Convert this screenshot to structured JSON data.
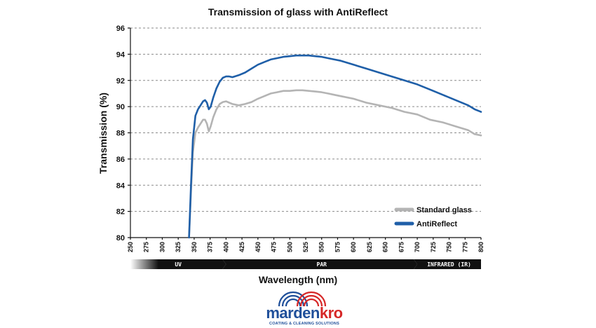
{
  "chart_data": {
    "type": "line",
    "title": "Transmission of glass with AntiReflect",
    "xlabel": "Wavelength (nm)",
    "ylabel": "Transmission (%)",
    "xlim": [
      250,
      800
    ],
    "ylim": [
      80,
      96
    ],
    "xticks": [
      250,
      275,
      300,
      325,
      350,
      375,
      400,
      425,
      450,
      475,
      500,
      525,
      550,
      575,
      600,
      625,
      650,
      675,
      700,
      725,
      750,
      775,
      800
    ],
    "yticks": [
      80,
      82,
      84,
      86,
      88,
      90,
      92,
      94,
      96
    ],
    "grid": "horizontal-dashed",
    "legend": "bottom-right",
    "series": [
      {
        "name": "Standard glass",
        "color": "#b4b4b4",
        "x": [
          342,
          345,
          348,
          352,
          356,
          360,
          364,
          367,
          370,
          373,
          376,
          380,
          385,
          390,
          395,
          400,
          405,
          410,
          420,
          430,
          440,
          450,
          460,
          470,
          480,
          490,
          500,
          510,
          520,
          530,
          540,
          550,
          560,
          570,
          580,
          600,
          620,
          640,
          660,
          680,
          700,
          720,
          740,
          760,
          780,
          790,
          800
        ],
        "y": [
          80,
          83.5,
          86.5,
          88.0,
          88.4,
          88.7,
          89.0,
          89.0,
          88.7,
          88.1,
          88.5,
          89.2,
          89.8,
          90.2,
          90.35,
          90.4,
          90.3,
          90.2,
          90.1,
          90.2,
          90.35,
          90.6,
          90.8,
          91.0,
          91.1,
          91.2,
          91.2,
          91.25,
          91.25,
          91.2,
          91.15,
          91.1,
          91.0,
          90.9,
          90.8,
          90.6,
          90.3,
          90.1,
          89.9,
          89.6,
          89.4,
          89.0,
          88.8,
          88.5,
          88.2,
          87.9,
          87.8
        ]
      },
      {
        "name": "AntiReflect",
        "color": "#1f5fa8",
        "x": [
          342,
          345,
          348,
          352,
          356,
          360,
          364,
          367,
          370,
          373,
          376,
          380,
          385,
          390,
          395,
          400,
          405,
          410,
          420,
          430,
          440,
          450,
          460,
          470,
          480,
          490,
          500,
          510,
          520,
          530,
          540,
          550,
          560,
          570,
          580,
          600,
          620,
          640,
          660,
          680,
          700,
          720,
          740,
          760,
          780,
          790,
          800
        ],
        "y": [
          80,
          84.0,
          87.5,
          89.3,
          89.8,
          90.1,
          90.4,
          90.5,
          90.3,
          89.8,
          90.0,
          90.7,
          91.4,
          91.9,
          92.2,
          92.3,
          92.3,
          92.25,
          92.4,
          92.6,
          92.9,
          93.2,
          93.4,
          93.6,
          93.7,
          93.8,
          93.85,
          93.9,
          93.9,
          93.9,
          93.85,
          93.8,
          93.7,
          93.6,
          93.5,
          93.2,
          92.9,
          92.6,
          92.3,
          92.0,
          91.7,
          91.3,
          90.9,
          90.5,
          90.1,
          89.8,
          89.6
        ]
      }
    ],
    "bands": [
      {
        "label": "UV",
        "from": 250,
        "to": 400
      },
      {
        "label": "PAR",
        "from": 400,
        "to": 700
      },
      {
        "label": "INFRARED (IR)",
        "from": 700,
        "to": 800
      }
    ]
  },
  "logo": {
    "name_part1": "marden",
    "name_part2": "kro",
    "tagline": "COATING & CLEANING SOLUTIONS",
    "colors": {
      "blue": "#1f4f9a",
      "red": "#d62828"
    }
  }
}
